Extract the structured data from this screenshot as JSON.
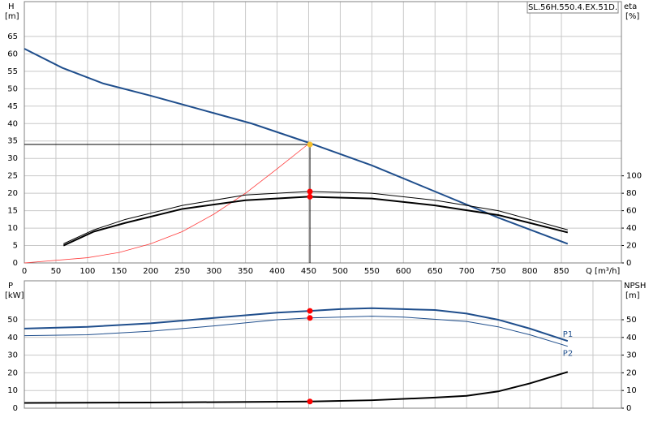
{
  "chart_data": [
    {
      "type": "line",
      "title": "SL.56H.550.4.EX.51D.",
      "ylabel": "H",
      "yunit": "[m]",
      "y2label": "eta",
      "y2unit": "[%]",
      "xlabel": "Q [m³/h]",
      "xlim": [
        0,
        945
      ],
      "xticks": [
        0,
        50,
        100,
        150,
        200,
        250,
        300,
        350,
        400,
        450,
        500,
        550,
        600,
        650,
        700,
        750,
        800,
        850
      ],
      "ylim": [
        0,
        75
      ],
      "yticks": [
        0,
        5,
        10,
        15,
        20,
        25,
        30,
        35,
        40,
        45,
        50,
        55,
        60,
        65
      ],
      "y2lim": [
        0,
        300
      ],
      "y2ticks": [
        0,
        20,
        40,
        60,
        80,
        100
      ],
      "grid": true,
      "series": [
        {
          "color": "#ff3b3b",
          "width": 0.8,
          "x": [
            0,
            100,
            150,
            200,
            250,
            300,
            350,
            400,
            452
          ],
          "values": [
            0,
            1.5,
            3,
            5.5,
            9,
            14,
            20,
            27,
            34.5
          ]
        },
        {
          "color": "#1f4e8c",
          "width": 2,
          "x": [
            0,
            60,
            125,
            200,
            300,
            360,
            450,
            550,
            650,
            750,
            860
          ],
          "values": [
            61.5,
            56,
            51.5,
            48,
            43,
            40,
            34.5,
            28,
            20.5,
            13,
            5.5
          ]
        },
        {
          "color": "#000000",
          "width": 1,
          "axis": "y2",
          "x": [
            62,
            110,
            160,
            250,
            350,
            450,
            550,
            650,
            750,
            860
          ],
          "values": [
            22,
            38,
            50,
            66,
            78,
            82,
            80,
            72,
            60,
            38
          ]
        },
        {
          "color": "#000000",
          "width": 2,
          "axis": "y2",
          "x": [
            62,
            110,
            160,
            250,
            350,
            450,
            550,
            650,
            750,
            860
          ],
          "values": [
            20,
            36,
            46,
            62,
            72,
            76,
            74,
            66,
            55,
            35
          ]
        }
      ],
      "operating_point": {
        "x": 452,
        "y": 34,
        "color": "#000000"
      },
      "markers": [
        {
          "x": 452,
          "y": 34,
          "color": "#f6c12e"
        },
        {
          "x": 452,
          "y": 82,
          "axis": "y2",
          "color": "#ff0000"
        },
        {
          "x": 452,
          "y": 76,
          "axis": "y2",
          "color": "#ff0000"
        }
      ]
    },
    {
      "type": "line",
      "ylabel": "P",
      "yunit": "[kW]",
      "y2label": "NPSH",
      "y2unit": "[m]",
      "xlim": [
        0,
        945
      ],
      "xgrid": [
        0,
        50,
        100,
        150,
        200,
        250,
        300,
        350,
        400,
        450,
        500,
        550,
        600,
        650,
        700,
        750,
        800,
        850,
        900
      ],
      "ylim": [
        0,
        72
      ],
      "yticks": [
        0,
        10,
        20,
        30,
        40,
        50
      ],
      "y2lim": [
        0,
        72
      ],
      "y2ticks": [
        0,
        10,
        20,
        30,
        40,
        50
      ],
      "grid": true,
      "series": [
        {
          "name": "P1",
          "color": "#1f4e8c",
          "width": 2,
          "x": [
            0,
            100,
            200,
            300,
            400,
            452,
            500,
            550,
            600,
            650,
            700,
            750,
            800,
            860
          ],
          "values": [
            45,
            46,
            48,
            51,
            54,
            55,
            56,
            56.5,
            56,
            55.5,
            53.5,
            50,
            45,
            38
          ]
        },
        {
          "name": "P2",
          "color": "#1f4e8c",
          "width": 1,
          "x": [
            0,
            100,
            200,
            300,
            400,
            452,
            500,
            550,
            600,
            700,
            750,
            800,
            860
          ],
          "values": [
            41,
            41.5,
            43.5,
            46.5,
            50,
            51,
            51.5,
            52,
            51.5,
            49,
            46,
            41.5,
            35
          ]
        },
        {
          "color": "#000000",
          "width": 2,
          "axis": "y2",
          "x": [
            0,
            200,
            452,
            550,
            650,
            700,
            750,
            800,
            860
          ],
          "values": [
            3,
            3.2,
            3.8,
            4.5,
            6,
            7,
            9.5,
            14,
            20.5
          ]
        }
      ],
      "markers": [
        {
          "x": 452,
          "y": 55,
          "color": "#ff0000"
        },
        {
          "x": 452,
          "y": 51,
          "color": "#ff0000"
        },
        {
          "x": 452,
          "y": 3.8,
          "axis": "y2",
          "color": "#ff0000"
        }
      ]
    }
  ]
}
